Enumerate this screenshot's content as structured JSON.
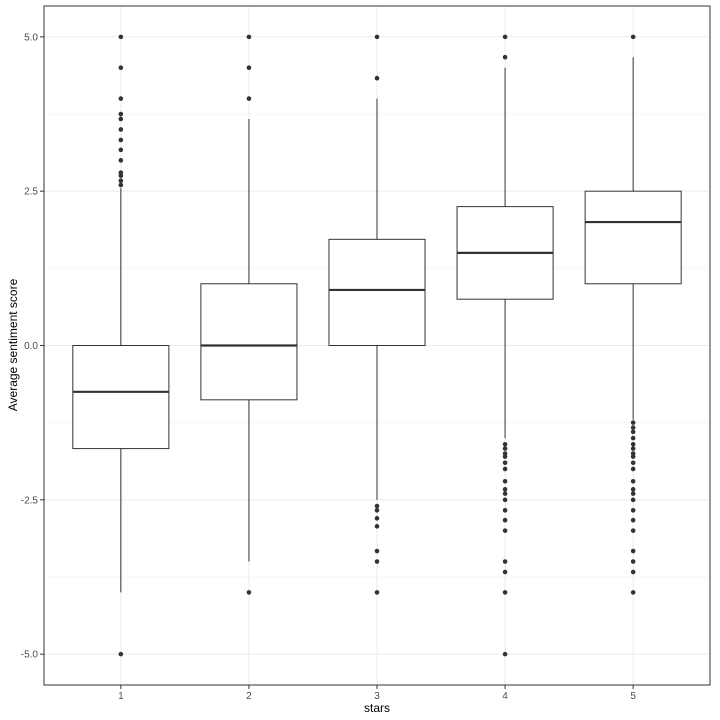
{
  "chart_data": {
    "type": "boxplot",
    "title": "",
    "xlabel": "stars",
    "ylabel": "Average sentiment score",
    "ylim": [
      -5.5,
      5.5
    ],
    "grid": true,
    "yticks": [
      -5.0,
      -2.5,
      0.0,
      2.5,
      5.0
    ],
    "ytick_labels": [
      "-5.0",
      "-2.5",
      "0.0",
      "2.5",
      "5.0"
    ],
    "categories": [
      "1",
      "2",
      "3",
      "4",
      "5"
    ],
    "boxes": [
      {
        "category": "1",
        "whisker_low": -4.0,
        "q1": -1.67,
        "median": -0.75,
        "q3": 0.0,
        "whisker_high": 2.55,
        "outliers": [
          -5.0,
          2.6,
          2.67,
          2.75,
          2.8,
          3.0,
          3.17,
          3.33,
          3.5,
          3.67,
          3.75,
          4.0,
          4.5,
          5.0
        ]
      },
      {
        "category": "2",
        "whisker_low": -3.5,
        "q1": -0.88,
        "median": 0.0,
        "q3": 1.0,
        "whisker_high": 3.67,
        "outliers": [
          -4.0,
          4.0,
          4.5,
          5.0
        ]
      },
      {
        "category": "3",
        "whisker_low": -2.5,
        "q1": 0.0,
        "median": 0.9,
        "q3": 1.72,
        "whisker_high": 4.0,
        "outliers": [
          -4.0,
          -3.5,
          -3.33,
          -2.93,
          -2.8,
          -2.67,
          -2.6,
          4.33,
          5.0
        ]
      },
      {
        "category": "4",
        "whisker_low": -1.5,
        "q1": 0.75,
        "median": 1.5,
        "q3": 2.25,
        "whisker_high": 4.5,
        "outliers": [
          -5.0,
          -4.0,
          -3.67,
          -3.5,
          -3.0,
          -2.83,
          -2.67,
          -2.5,
          -2.4,
          -2.33,
          -2.2,
          -2.0,
          -1.9,
          -1.8,
          -1.75,
          -1.67,
          -1.6,
          4.67,
          5.0
        ]
      },
      {
        "category": "5",
        "whisker_low": -1.2,
        "q1": 1.0,
        "median": 2.0,
        "q3": 2.5,
        "whisker_high": 4.67,
        "outliers": [
          -4.0,
          -3.67,
          -3.5,
          -3.33,
          -3.0,
          -2.83,
          -2.67,
          -2.5,
          -2.4,
          -2.33,
          -2.2,
          -2.0,
          -1.9,
          -1.8,
          -1.75,
          -1.67,
          -1.6,
          -1.5,
          -1.4,
          -1.33,
          -1.25,
          5.0
        ]
      }
    ]
  }
}
